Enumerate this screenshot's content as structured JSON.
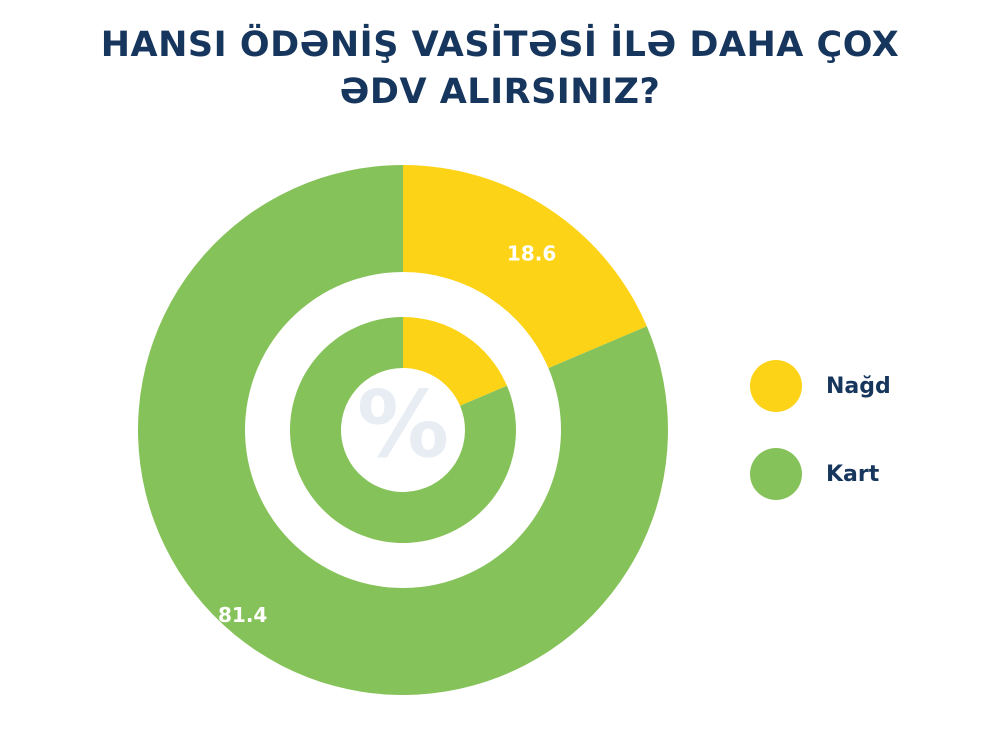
{
  "title": {
    "line1": "HANSI ÖDƏNİŞ VASİTƏSİ İLƏ DAHA ÇOX",
    "line2": "ƏDV ALIRSINIZ?"
  },
  "center_symbol": "%",
  "colors": {
    "yellow": "#fdd317",
    "green": "#86c25a",
    "title": "#17365d",
    "symbol": "#e7edf3"
  },
  "chart_data": {
    "type": "pie",
    "variant": "concentric-donut",
    "categories": [
      "Nağd",
      "Kart"
    ],
    "values": [
      18.6,
      81.4
    ],
    "unit": "%",
    "legend_position": "right",
    "data_labels": [
      "18.6",
      "81.4"
    ]
  }
}
